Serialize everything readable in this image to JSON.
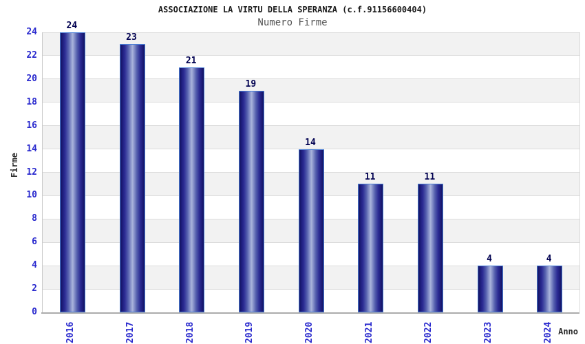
{
  "chart_data": {
    "type": "bar",
    "title": "ASSOCIAZIONE LA VIRTU DELLA SPERANZA (c.f.91156600404)",
    "subtitle": "Numero Firme",
    "xlabel": "Anno",
    "ylabel": "Firme",
    "categories": [
      "2016",
      "2017",
      "2018",
      "2019",
      "2020",
      "2021",
      "2022",
      "2023",
      "2024"
    ],
    "values": [
      24,
      23,
      21,
      19,
      14,
      11,
      11,
      4,
      4
    ],
    "ylim": [
      0,
      24
    ],
    "ytick_step": 2,
    "yticks": [
      0,
      2,
      4,
      6,
      8,
      10,
      12,
      14,
      16,
      18,
      20,
      22,
      24
    ],
    "legend": "none",
    "grid": "horizontal-bands",
    "colors": {
      "bar_edge": "#12125e",
      "bar_center": "#aab4dc",
      "bar_border": "#4a7fd8",
      "tick_label": "#2a2ace",
      "value_label": "#000050",
      "band_gray": "#f2f2f2",
      "band_white": "#ffffff",
      "gridline": "#dcdcdc",
      "title": "#1a1a1a",
      "subtitle": "#555555",
      "axis_title": "#2b2b2b"
    }
  }
}
